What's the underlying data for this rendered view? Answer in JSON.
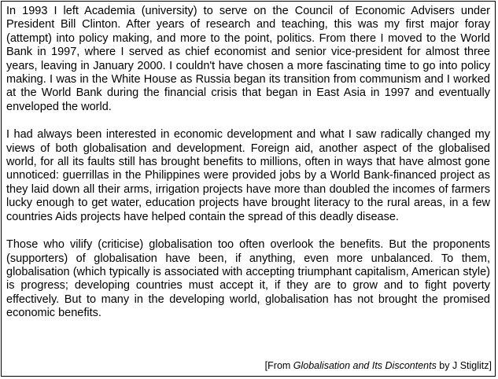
{
  "passage": {
    "paragraphs": [
      "In 1993 I left Academia (university) to serve on the Council of Economic Advisers under President Bill Clinton. After years of research and teaching, this was my first major foray (attempt) into policy making, and more to the point, politics. From there I moved to the World Bank in 1997, where I served as chief economist and senior vice-president for almost three years, leaving in January 2000. I couldn't have chosen a more fascinating time to go into policy making. I was in the White House as Russia began its transition from communism and I worked at the World Bank during the financial crisis that began in East Asia in 1997 and eventually enveloped the world.",
      "I had always been interested in economic development and what I saw radically changed my views of both globalisation and development. Foreign aid, another aspect of the globalised world, for all its faults still has brought benefits to millions, often in ways that have almost gone unnoticed: guerrillas in the Philippines were provided jobs by a World Bank-financed project as they laid down all their arms, irrigation projects have more than doubled the incomes of farmers lucky enough to get water, education projects have brought literacy to the rural areas, in a few countries Aids projects have helped contain the spread of this deadly disease.",
      "Those who vilify (criticise) globalisation too often overlook the benefits. But the proponents (supporters) of globalisation have been, if anything, even more unbalanced. To them, globalisation (which typically is associated with accepting triumphant capitalism, American style) is progress; developing countries must accept it, if they are to grow and to fight poverty effectively. But to many in the developing world, globalisation has not brought the promised economic benefits."
    ],
    "source": {
      "prefix": "[From ",
      "title": "Globalisation and Its Discontents",
      "suffix": " by J Stiglitz]"
    }
  }
}
